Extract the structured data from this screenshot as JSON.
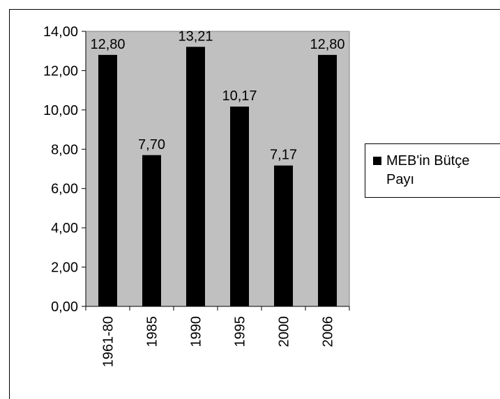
{
  "chart_data": {
    "type": "bar",
    "categories": [
      "1961-80",
      "1985",
      "1990",
      "1995",
      "2000",
      "2006"
    ],
    "series": [
      {
        "name": "MEB'in Bütçe Payı",
        "values": [
          12.8,
          7.7,
          13.21,
          10.17,
          7.17,
          12.8
        ]
      }
    ],
    "data_labels": [
      "12,80",
      "7,70",
      "13,21",
      "10,17",
      "7,17",
      "12,80"
    ],
    "y_ticks": [
      0,
      2,
      4,
      6,
      8,
      10,
      12,
      14
    ],
    "y_tick_labels": [
      "0,00",
      "2,00",
      "4,00",
      "6,00",
      "8,00",
      "10,00",
      "12,00",
      "14,00"
    ],
    "ylim": [
      0,
      14
    ],
    "title": "",
    "xlabel": "",
    "ylabel": "",
    "grid": false,
    "legend_position": "right",
    "colors": {
      "plot_background": "#c0c0c0",
      "bar": "#000000",
      "axis": "#000000",
      "page": "#ffffff"
    }
  },
  "legend": {
    "label": "MEB'in Bütçe Payı"
  }
}
